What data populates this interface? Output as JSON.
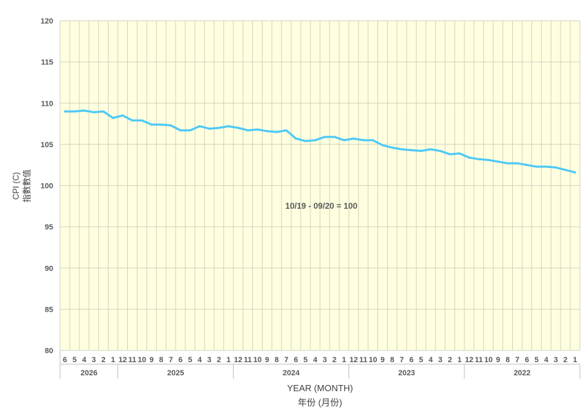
{
  "chart_data": {
    "type": "line",
    "ylabel": "CPI (C)",
    "ylabel_sub": "指數數值",
    "xlabel": "YEAR (MONTH)",
    "xlabel_sub": "年份 (月份)",
    "annotation": "10/19 - 09/20 = 100",
    "ylim": [
      80,
      120
    ],
    "yticks": [
      80,
      85,
      90,
      95,
      100,
      105,
      110,
      115,
      120
    ],
    "grid": true,
    "colors": {
      "line": "#4DC9F6",
      "plot_background": "#FFFFE0",
      "grid": "#D3D3C0",
      "text": "#595959"
    },
    "groups": [
      {
        "label": "2026",
        "months": [
          "6",
          "5",
          "4",
          "3",
          "2",
          "1"
        ]
      },
      {
        "label": "2025",
        "months": [
          "12",
          "11",
          "10",
          "9",
          "8",
          "7",
          "6",
          "5",
          "4",
          "3",
          "2",
          "1"
        ]
      },
      {
        "label": "2024",
        "months": [
          "12",
          "11",
          "10",
          "9",
          "8",
          "7",
          "6",
          "5",
          "4",
          "3",
          "2",
          "1"
        ]
      },
      {
        "label": "2023",
        "months": [
          "12",
          "11",
          "10",
          "9",
          "8",
          "7",
          "6",
          "5",
          "4",
          "3",
          "2",
          "1"
        ]
      },
      {
        "label": "2022",
        "months": [
          "12",
          "11",
          "10",
          "9",
          "8",
          "7",
          "6",
          "5",
          "4",
          "3",
          "2",
          "1"
        ]
      }
    ],
    "series": [
      {
        "values": [
          109.0,
          109.0,
          109.1,
          108.9,
          109.0,
          108.2,
          108.5,
          107.9,
          107.9,
          107.4,
          107.4,
          107.3,
          106.7,
          106.7,
          107.2,
          106.9,
          107.0,
          107.2,
          107.0,
          106.7,
          106.8,
          106.6,
          106.5,
          106.7,
          105.7,
          105.4,
          105.5,
          105.9,
          105.9,
          105.5,
          105.7,
          105.5,
          105.5,
          104.9,
          104.6,
          104.4,
          104.3,
          104.2,
          104.4,
          104.2,
          103.8,
          103.9,
          103.4,
          103.2,
          103.1,
          102.9,
          102.7,
          102.7,
          102.5,
          102.3,
          102.3,
          102.2,
          101.9,
          101.6
        ]
      }
    ]
  }
}
